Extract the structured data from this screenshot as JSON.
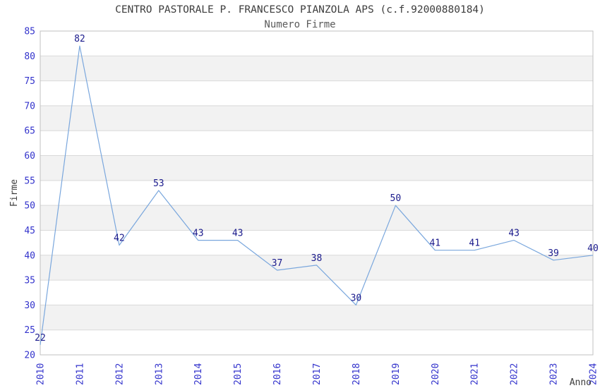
{
  "header": {
    "title": "CENTRO PASTORALE P. FRANCESCO PIANZOLA APS (c.f.92000880184)",
    "subtitle": "Numero Firme"
  },
  "chart_data": {
    "type": "line",
    "title": "CENTRO PASTORALE P. FRANCESCO PIANZOLA APS (c.f.92000880184)",
    "subtitle": "Numero Firme",
    "xlabel": "Anno",
    "ylabel": "Firme",
    "x": [
      "2010",
      "2011",
      "2012",
      "2013",
      "2014",
      "2015",
      "2016",
      "2017",
      "2018",
      "2019",
      "2020",
      "2021",
      "2022",
      "2023",
      "2024"
    ],
    "series": [
      {
        "name": "Numero Firme",
        "values": [
          22,
          82,
          42,
          53,
          43,
          43,
          37,
          38,
          30,
          50,
          41,
          41,
          43,
          39,
          40
        ]
      }
    ],
    "point_labels": [
      22,
      82,
      42,
      53,
      43,
      43,
      37,
      38,
      30,
      50,
      41,
      41,
      43,
      39,
      40
    ],
    "ylim": [
      20,
      85
    ],
    "ytick_step": 5,
    "yticks": [
      20,
      25,
      30,
      35,
      40,
      45,
      50,
      55,
      60,
      65,
      70,
      75,
      80,
      85
    ],
    "grid": "horizontal",
    "legend": "none",
    "colors": {
      "line": "#7aa7dd",
      "tick_label": "#3333cc",
      "point_label": "#1a1a8c",
      "grid_line": "#d9d9d9",
      "band_fill": "#f2f2f2",
      "plot_border": "#c0c0c0",
      "title_text": "#3d3d3d",
      "subtitle_text": "#5a5a5a",
      "axis_title_text": "#3d3d3d",
      "background": "#ffffff"
    }
  }
}
